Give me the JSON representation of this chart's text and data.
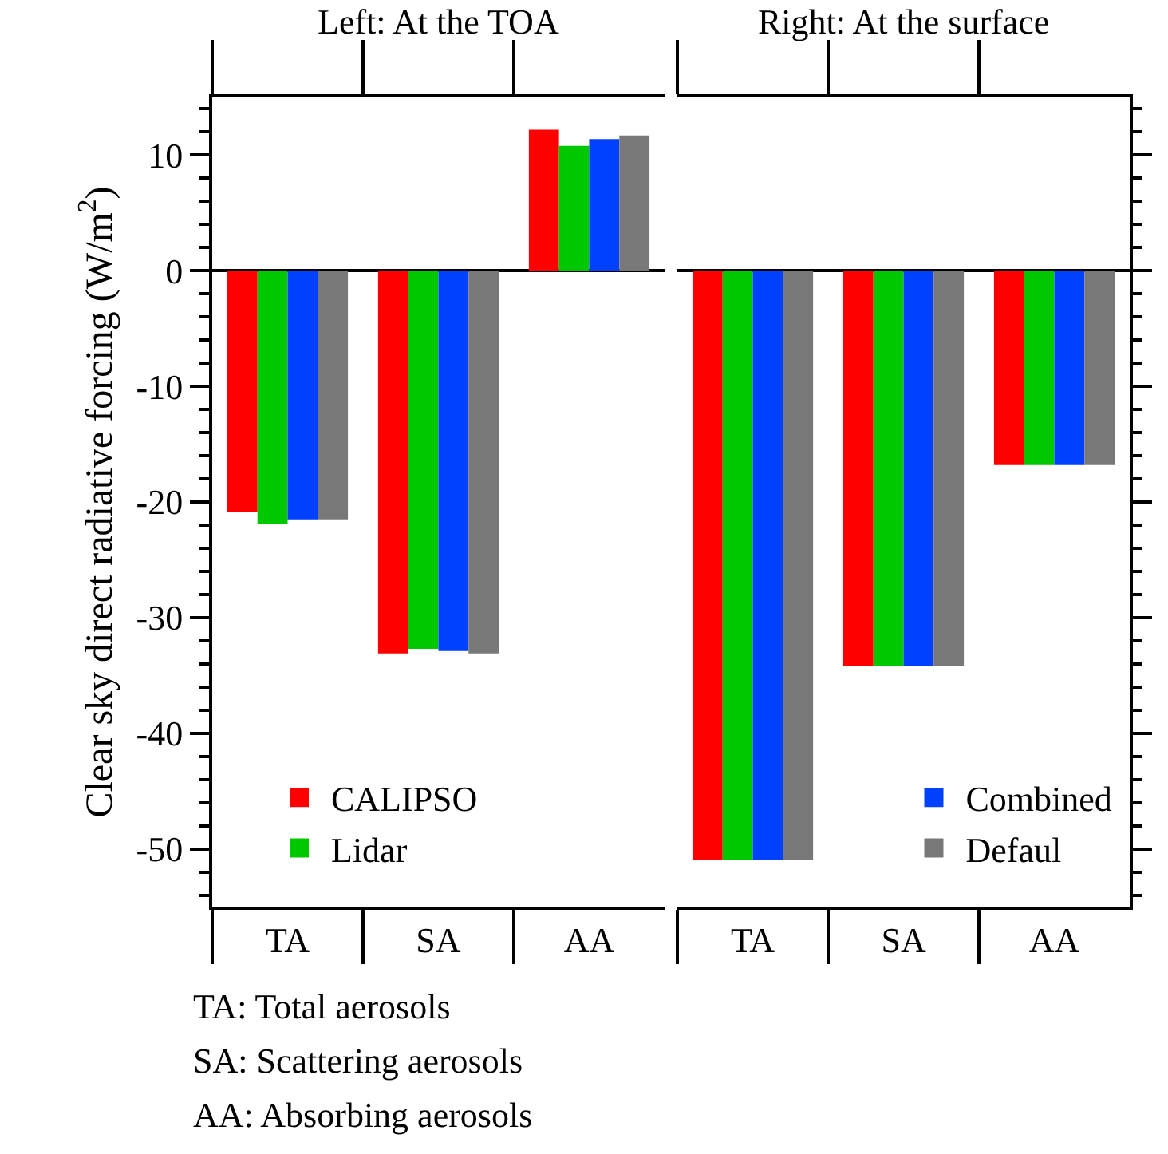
{
  "chart_data": [
    {
      "type": "bar",
      "title": "Left: At the TOA",
      "ylabel": "Clear sky direct radiative forcing (W/m$^{2}$)",
      "categories": [
        "TA",
        "SA",
        "AA"
      ],
      "series": [
        {
          "name": "CALIPSO",
          "color": "#ff0000",
          "values": [
            -20.9,
            -33.1,
            12.2
          ]
        },
        {
          "name": "Lidar",
          "color": "#00c800",
          "values": [
            -21.9,
            -32.7,
            10.8
          ]
        },
        {
          "name": "Combined",
          "color": "#0040ff",
          "values": [
            -21.5,
            -32.9,
            11.4
          ]
        },
        {
          "name": "Defaul",
          "color": "#787878",
          "values": [
            -21.5,
            -33.1,
            11.7
          ]
        }
      ],
      "ylim": [
        -55,
        15
      ],
      "yticks": [
        -50,
        -40,
        -30,
        -20,
        -10,
        0,
        10
      ],
      "legend": "bottom",
      "annotations": [
        "TA: Total aerosols",
        "SA: Scattering aerosols",
        "AA: Absorbing aerosols"
      ]
    },
    {
      "type": "bar",
      "title": "Right: At the surface",
      "categories": [
        "TA",
        "SA",
        "AA"
      ],
      "series": [
        {
          "color": "#ff0000",
          "values": [
            -51.0,
            -34.2,
            -16.8
          ]
        },
        {
          "color": "#00c800",
          "values": [
            -51.0,
            -34.2,
            -16.8
          ]
        },
        {
          "color": "#0040ff",
          "values": [
            -51.0,
            -34.2,
            -16.8
          ]
        },
        {
          "color": "#787878",
          "values": [
            -51.0,
            -34.2,
            -16.8
          ]
        }
      ],
      "ylim": [
        -55,
        15
      ],
      "yticks": [
        -50,
        -40,
        -30,
        -20,
        -10,
        0,
        10
      ],
      "tick_labels": "x"
    }
  ]
}
